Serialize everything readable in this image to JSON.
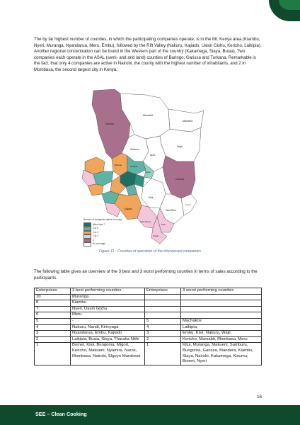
{
  "intro_paragraph": "The by far highest number of counties, in which the participating companies operate, is in the Mt. Kenya area (Kiambu, Nyeri, Muranga, Nyandarua, Meru, Embu), followed by the Rift Valley (Nakuru, Kajiado, Uasin Gishu, Kericho, Laikipia). Another regional concentration can be found in the Western part of the country (Kakamega, Siaya, Busia). Two companies each operate in the ASAL (semi- and arid land) counties of Baringo, Garissa and Turkana. Remarkable is the fact, that only 4 companies are active in Nairobi, the county with the highest number of inhabitants, and 2 in Mombasa, the second largest city in Kenya.",
  "figure": {
    "caption": "Figure 11 - Counties of operation of the interviewed companies",
    "map_labels": {
      "turkana": "Turkana",
      "marsabit": "Marsabit",
      "wajir": "Wajir",
      "mandera": "Mandera",
      "samburu": "Samburu",
      "isiolo": "Isiolo",
      "garissa": "Garissa",
      "baringo": "Baringo",
      "laikipia": "Laikipia",
      "meru": "Meru",
      "kitui": "Kitui",
      "kajiado": "Kajiado",
      "tana_river": "Tana River",
      "lamu": "Lamu",
      "kilifi": "Kilifi",
      "kwale": "Kwale",
      "taita_taveta": "Taita Taveta"
    },
    "legend": {
      "title": "Number of companies active in county",
      "items": [
        {
          "label": "More than 7",
          "color": "#1d6e63"
        },
        {
          "label": "5 to 6",
          "color": "#5fb3a4"
        },
        {
          "label": "3 to 4",
          "color": "#f0a55a"
        },
        {
          "label": "1 to 2",
          "color": "#f4c6dc"
        },
        {
          "label": "2",
          "color": "#a9708d"
        },
        {
          "label": "No coverage",
          "color": "#ffffff"
        }
      ]
    }
  },
  "table_intro": "The following table gives an overview of the 3 best and 3 worst performing counties in terms of sales according to the participants.",
  "table": {
    "headers": [
      "Enterprises",
      "3 best performing counties",
      "Enterprises",
      "3 worst performing counties"
    ],
    "rows": [
      [
        "10",
        "Muranga",
        "",
        ""
      ],
      [
        "8",
        "Kiambu",
        "",
        ""
      ],
      [
        "7",
        "Nyeri, Uasin Gishu",
        "",
        ""
      ],
      [
        "6",
        "Meru",
        "",
        ""
      ],
      [
        "5",
        "-",
        "5",
        "Machakos"
      ],
      [
        "4",
        "Nakuru, Nandi, Kirinyaga",
        "4",
        "Laikipia,"
      ],
      [
        "3",
        "Nyandarua, Embu, Kajiado",
        "3",
        "Embu, Kisii, Nakuru, Wajir,"
      ],
      [
        "2",
        "Laikipia, Busia, Siaya, Tharaka-Nithi",
        "2",
        "Kericho, Marsabit, Mombasa, Meru"
      ],
      [
        "1",
        "Bomet, Kisii, Bungoma, Migori, Kericho, Makueni, Nyamira, Narok, Mombasa, Nairobi, Elgeyo Marakwet",
        "1",
        "Kitui, Muranga, Makueni, Samburu, Bungoma, Garissa, Mandera, Kiambu, Siaya, Nairobi, Kakamega, Kisumu, Bomet, Nyeri"
      ]
    ]
  },
  "page_number": "16",
  "footer_text": "SEE – Clean Cooking",
  "colors": {
    "footer_green": "#0f4a2c",
    "accent_green": "#1f7a44",
    "caption_blue": "#4f6f8f"
  }
}
